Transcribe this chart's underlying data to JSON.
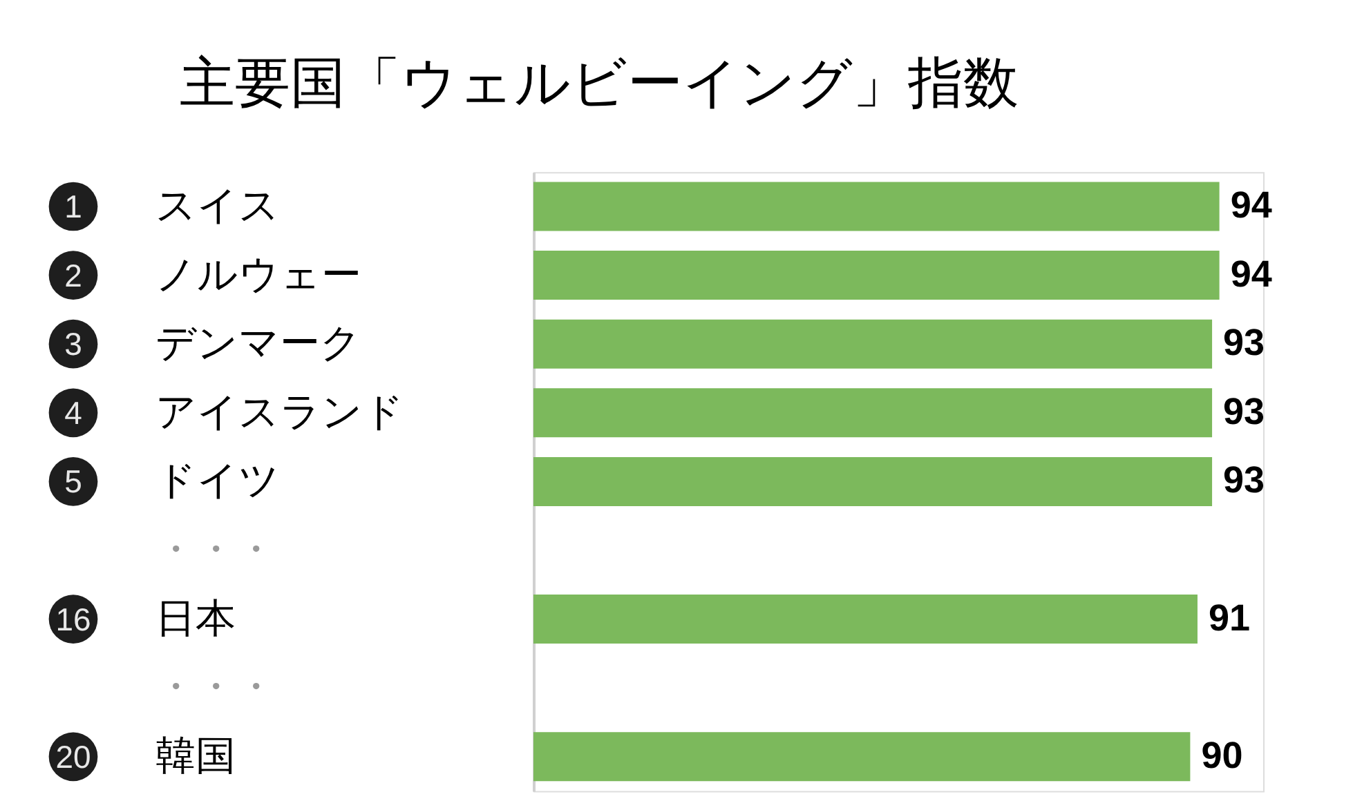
{
  "chart_data": {
    "type": "bar",
    "title": "主要国「ウェルビーイング」指数",
    "orientation": "horizontal",
    "categories": [
      "スイス",
      "ノルウェー",
      "デンマーク",
      "アイスランド",
      "ドイツ",
      "・・・",
      "日本",
      "・・・",
      "韓国"
    ],
    "values": [
      94,
      94,
      93,
      93,
      93,
      null,
      91,
      null,
      90
    ],
    "color": "#7cb95c",
    "xlim": [
      0,
      100
    ],
    "tick_labels": "y",
    "data_labels": true,
    "annotations": [
      "1",
      "2",
      "3",
      "4",
      "5",
      "16",
      "20"
    ]
  }
}
